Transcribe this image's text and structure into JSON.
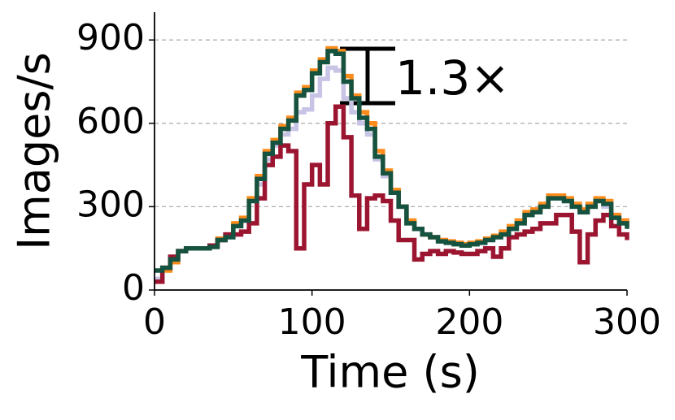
{
  "chart_data": {
    "type": "line",
    "step": true,
    "xlabel": "Time (s)",
    "ylabel": "Images/s",
    "annotation": "1.3×",
    "x": [
      0,
      5,
      10,
      15,
      20,
      25,
      30,
      35,
      40,
      45,
      50,
      55,
      60,
      65,
      70,
      75,
      80,
      85,
      90,
      95,
      100,
      105,
      110,
      115,
      120,
      125,
      130,
      135,
      140,
      145,
      150,
      155,
      160,
      165,
      170,
      175,
      180,
      185,
      190,
      195,
      200,
      205,
      210,
      215,
      220,
      225,
      230,
      235,
      240,
      245,
      250,
      255,
      260,
      265,
      270,
      275,
      280,
      285,
      290,
      295,
      300
    ],
    "series": [
      {
        "color": "#c8c4e6",
        "values": [
          40,
          80,
          110,
          140,
          150,
          150,
          150,
          160,
          180,
          190,
          230,
          250,
          330,
          380,
          470,
          520,
          560,
          580,
          640,
          650,
          700,
          760,
          800,
          790,
          690,
          640,
          600,
          560,
          470,
          410,
          350,
          300,
          240,
          220,
          200,
          190,
          180,
          175,
          170,
          165,
          165,
          170,
          180,
          190,
          200,
          220,
          240,
          270,
          280,
          300,
          330,
          330,
          320,
          300,
          280,
          300,
          320,
          300,
          270,
          250,
          230
        ]
      },
      {
        "color": "#ff8c1a",
        "values": [
          30,
          70,
          100,
          140,
          150,
          150,
          150,
          160,
          185,
          200,
          240,
          260,
          330,
          410,
          500,
          540,
          590,
          620,
          710,
          730,
          790,
          830,
          870,
          860,
          770,
          700,
          640,
          600,
          500,
          430,
          360,
          300,
          250,
          220,
          200,
          190,
          180,
          175,
          170,
          165,
          170,
          175,
          185,
          195,
          210,
          230,
          250,
          280,
          290,
          310,
          340,
          340,
          330,
          310,
          290,
          310,
          330,
          320,
          270,
          250,
          230
        ]
      },
      {
        "color": "#9b1530",
        "values": [
          30,
          80,
          120,
          140,
          150,
          150,
          150,
          160,
          180,
          200,
          200,
          210,
          240,
          330,
          450,
          480,
          520,
          500,
          150,
          380,
          450,
          380,
          600,
          660,
          550,
          340,
          220,
          330,
          340,
          320,
          250,
          180,
          180,
          110,
          130,
          140,
          130,
          140,
          135,
          130,
          130,
          140,
          150,
          120,
          150,
          190,
          200,
          210,
          220,
          240,
          240,
          270,
          270,
          210,
          100,
          200,
          250,
          270,
          230,
          200,
          180
        ]
      },
      {
        "color": "#155240",
        "values": [
          70,
          80,
          110,
          140,
          150,
          150,
          150,
          155,
          180,
          190,
          230,
          250,
          320,
          400,
          490,
          530,
          580,
          610,
          700,
          720,
          780,
          820,
          860,
          850,
          750,
          690,
          620,
          580,
          480,
          420,
          350,
          300,
          240,
          220,
          200,
          190,
          175,
          170,
          165,
          160,
          165,
          170,
          180,
          190,
          200,
          220,
          240,
          270,
          280,
          300,
          330,
          330,
          320,
          300,
          280,
          300,
          320,
          310,
          260,
          240,
          220
        ]
      }
    ],
    "xlim": [
      0,
      300
    ],
    "xticks": [
      0,
      100,
      200,
      300
    ],
    "ylim": [
      0,
      1000
    ],
    "yticks": [
      0,
      300,
      600,
      900
    ],
    "grid": true
  }
}
